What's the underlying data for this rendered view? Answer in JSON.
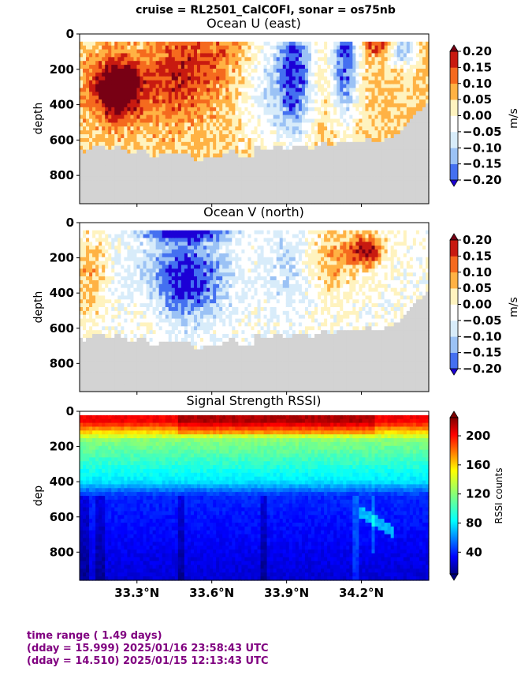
{
  "figure": {
    "suptitle": "cruise = RL2501_CalCOFI,  sonar = os75nb"
  },
  "chart_data": [
    {
      "type": "heatmap",
      "title": "Ocean U (east)",
      "ylabel": "depth",
      "ylim": [
        960,
        0
      ],
      "yticks": [
        "0",
        "200",
        "400",
        "600",
        "800"
      ],
      "xlim": [
        33.07,
        34.47
      ],
      "xticks": [
        "33.3°N",
        "33.6°N",
        "33.9°N",
        "34.2°N"
      ],
      "colorbar": {
        "label": "m/s",
        "range": [
          -0.2,
          0.2
        ],
        "levels": [
          -0.2,
          -0.15,
          -0.1,
          -0.05,
          0.0,
          0.05,
          0.1,
          0.15,
          0.2
        ],
        "ticks": [
          "0.20",
          "0.15",
          "0.10",
          "0.05",
          "0.00",
          "−0.05",
          "−0.10",
          "−0.15",
          "−0.20"
        ],
        "colors": [
          "#1c00d6",
          "#4470f0",
          "#9bc2f5",
          "#d8ecfa",
          "#ffffff",
          "#fff3bf",
          "#ffb244",
          "#f56a1e",
          "#c81a10",
          "#780014"
        ]
      }
    },
    {
      "type": "heatmap",
      "title": "Ocean V (north)",
      "ylabel": "depth",
      "ylim": [
        960,
        0
      ],
      "yticks": [
        "0",
        "200",
        "400",
        "600",
        "800"
      ],
      "xlim": [
        33.07,
        34.47
      ],
      "xticks": [
        "33.3°N",
        "33.6°N",
        "33.9°N",
        "34.2°N"
      ],
      "colorbar": {
        "label": "m/s",
        "range": [
          -0.2,
          0.2
        ],
        "levels": [
          -0.2,
          -0.15,
          -0.1,
          -0.05,
          0.0,
          0.05,
          0.1,
          0.15,
          0.2
        ],
        "ticks": [
          "0.20",
          "0.15",
          "0.10",
          "0.05",
          "0.00",
          "−0.05",
          "−0.10",
          "−0.15",
          "−0.20"
        ],
        "colors": [
          "#1c00d6",
          "#4470f0",
          "#9bc2f5",
          "#d8ecfa",
          "#ffffff",
          "#fff3bf",
          "#ffb244",
          "#f56a1e",
          "#c81a10",
          "#780014"
        ]
      }
    },
    {
      "type": "heatmap",
      "title": "Signal Strength RSSI)",
      "ylabel": "dep",
      "ylim": [
        960,
        0
      ],
      "yticks": [
        "0",
        "200",
        "400",
        "600",
        "800"
      ],
      "xlim": [
        33.07,
        34.47
      ],
      "xticks": [
        "33.3°N",
        "33.6°N",
        "33.9°N",
        "34.2°N"
      ],
      "colorbar": {
        "label": "RSSI counts",
        "range": [
          10,
          225
        ],
        "ticks": [
          "200",
          "160",
          "120",
          "80",
          "40"
        ],
        "tick_values": [
          200,
          160,
          120,
          80,
          40
        ],
        "colormap": "jet"
      }
    }
  ],
  "footer": {
    "line1": "time range ( 1.49 days)",
    "line2": "(dday = 15.999) 2025/01/16 23:58:43 UTC",
    "line3": "(dday = 14.510) 2025/01/15 12:13:43 UTC"
  }
}
